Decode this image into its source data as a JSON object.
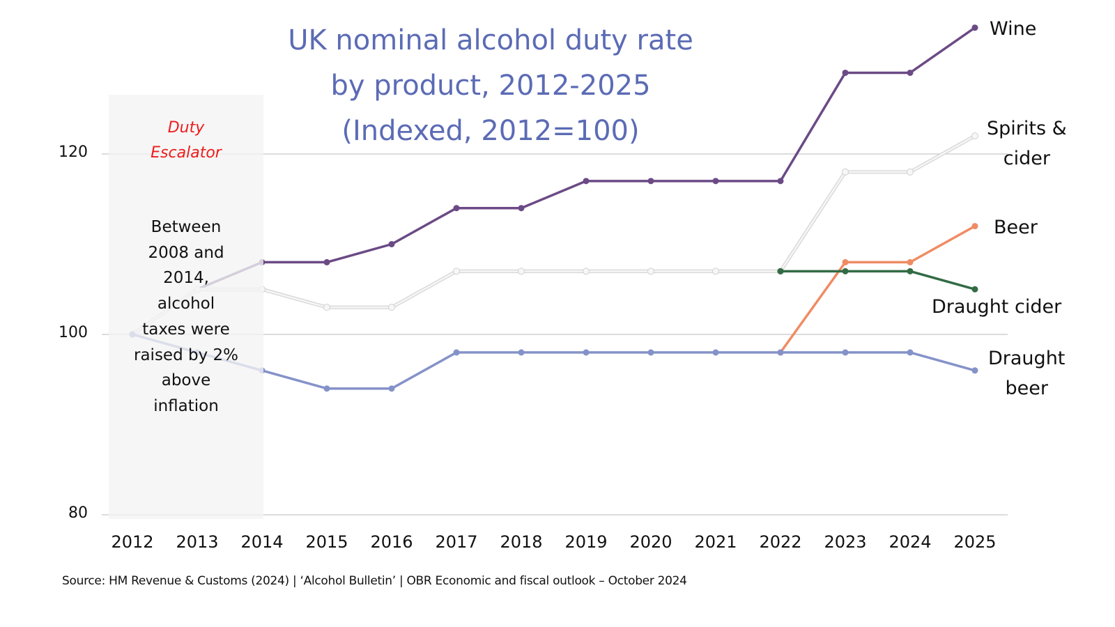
{
  "chart_data": {
    "type": "line",
    "title": "UK nominal alcohol duty rate by product, 2012-2025 (Indexed, 2012=100)",
    "title_lines": [
      "UK nominal alcohol duty rate",
      "by product, 2012-2025",
      "(Indexed, 2012=100)"
    ],
    "xlabel": "",
    "ylabel": "",
    "x": [
      "2012",
      "2013",
      "2014",
      "2015",
      "2016",
      "2017",
      "2018",
      "2019",
      "2020",
      "2021",
      "2022",
      "2023",
      "2024",
      "2025"
    ],
    "ylim": [
      80,
      134
    ],
    "yticks": [
      80,
      100,
      120
    ],
    "grid": "horizontal",
    "legend": "direct-labels-right",
    "series": [
      {
        "name": "Wine",
        "label_lines": [
          "Wine"
        ],
        "color": "#6b4a85",
        "marker": "filled",
        "values": [
          100,
          105,
          108,
          108,
          110,
          114,
          114,
          117,
          117,
          117,
          117,
          129,
          129,
          134
        ]
      },
      {
        "name": "Spirits & cider",
        "label_lines": [
          "Spirits &",
          "cider"
        ],
        "color": "#e6e6e6",
        "marker": "hollow",
        "values": [
          100,
          105,
          105,
          103,
          103,
          107,
          107,
          107,
          107,
          107,
          107,
          118,
          118,
          122
        ]
      },
      {
        "name": "Beer",
        "label_lines": [
          "Beer"
        ],
        "color": "#ef8c64",
        "marker": "filled",
        "values": [
          null,
          null,
          null,
          null,
          null,
          null,
          null,
          null,
          null,
          null,
          98,
          108,
          108,
          112
        ]
      },
      {
        "name": "Draught cider",
        "label_lines": [
          "Draught cider"
        ],
        "color": "#336b45",
        "marker": "filled",
        "values": [
          null,
          null,
          null,
          null,
          null,
          null,
          null,
          null,
          null,
          null,
          107,
          107,
          107,
          105
        ]
      },
      {
        "name": "Draught beer",
        "label_lines": [
          "Draught",
          "beer"
        ],
        "color": "#8592c9",
        "marker": "filled",
        "values": [
          100,
          98,
          96,
          94,
          94,
          98,
          98,
          98,
          98,
          98,
          98,
          98,
          98,
          96
        ]
      }
    ],
    "annotations": [
      {
        "type": "shaded-region",
        "x_from": "2012",
        "x_to": "2014",
        "heading": "Duty Escalator",
        "heading_lines": [
          "Duty",
          "Escalator"
        ],
        "heading_color": "#ee1c1c",
        "text": "Between 2008 and 2014, alcohol taxes were raised by 2% above inflation",
        "text_lines": [
          "Between",
          "2008 and",
          "2014,",
          "alcohol",
          "taxes were",
          "raised by 2%",
          "above",
          "inflation"
        ]
      }
    ],
    "source": "Source: HM Revenue & Customs (2024) | ‘Alcohol Bulletin’ | OBR Economic and fiscal outlook – October 2024"
  },
  "colors": {
    "title": "#5b6bb5",
    "gridline": "#c8c8c8",
    "shade": "#f3f3f3"
  }
}
